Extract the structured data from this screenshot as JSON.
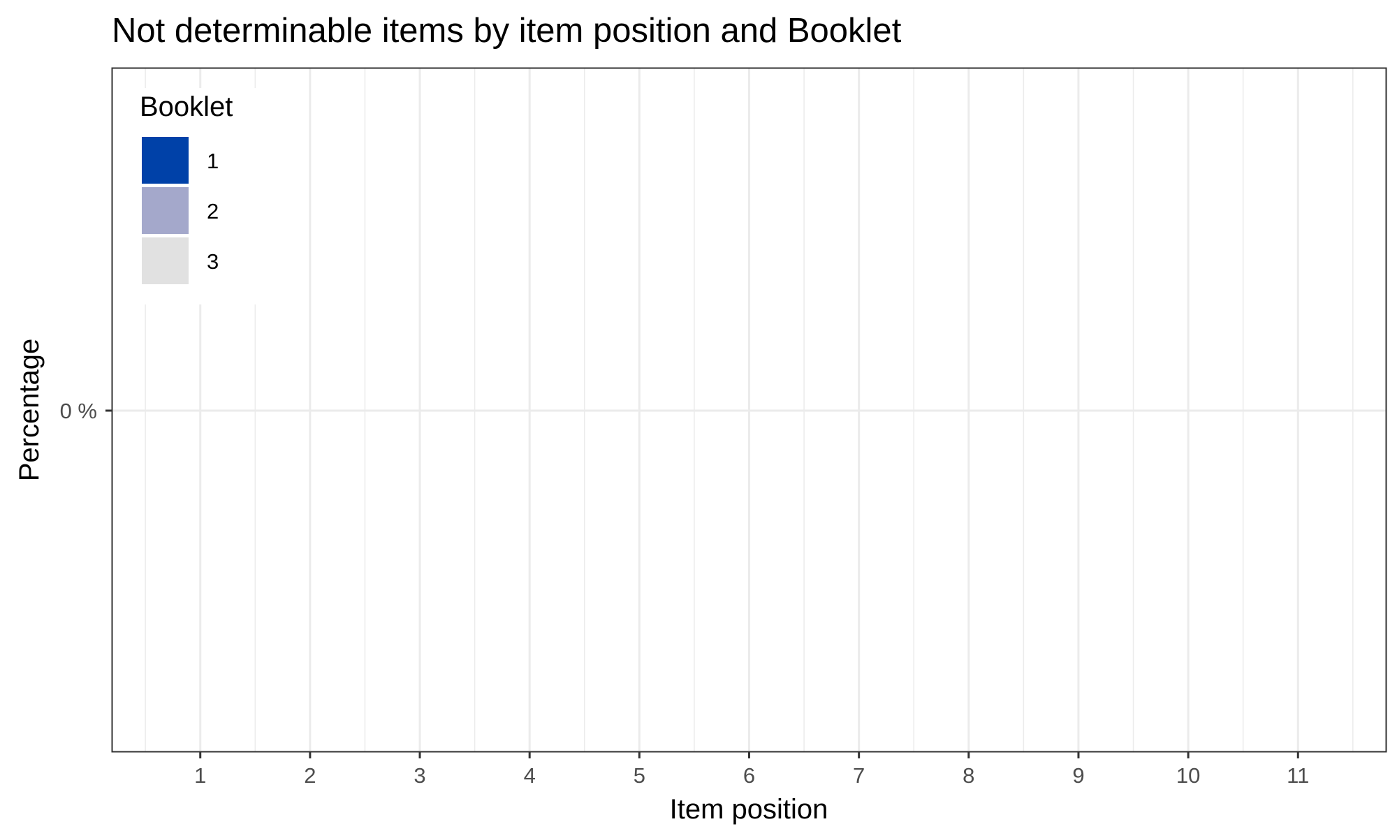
{
  "chart_data": {
    "type": "bar",
    "title": "Not determinable items by item position and Booklet",
    "xlabel": "Item position",
    "ylabel": "Percentage",
    "categories": [
      "1",
      "2",
      "3",
      "4",
      "5",
      "6",
      "7",
      "8",
      "9",
      "10",
      "11"
    ],
    "y_ticks": [
      "0 %"
    ],
    "series": [
      {
        "name": "1",
        "color": "#0041a8",
        "values": [
          0,
          0,
          0,
          0,
          0,
          0,
          0,
          0,
          0,
          0,
          0
        ]
      },
      {
        "name": "2",
        "color": "#a4a8cb",
        "values": [
          0,
          0,
          0,
          0,
          0,
          0,
          0,
          0,
          0,
          0,
          0
        ]
      },
      {
        "name": "3",
        "color": "#e1e1e1",
        "values": [
          0,
          0,
          0,
          0,
          0,
          0,
          0,
          0,
          0,
          0,
          0
        ]
      }
    ],
    "legend": {
      "title": "Booklet",
      "position": "top-left"
    },
    "grid": true
  }
}
